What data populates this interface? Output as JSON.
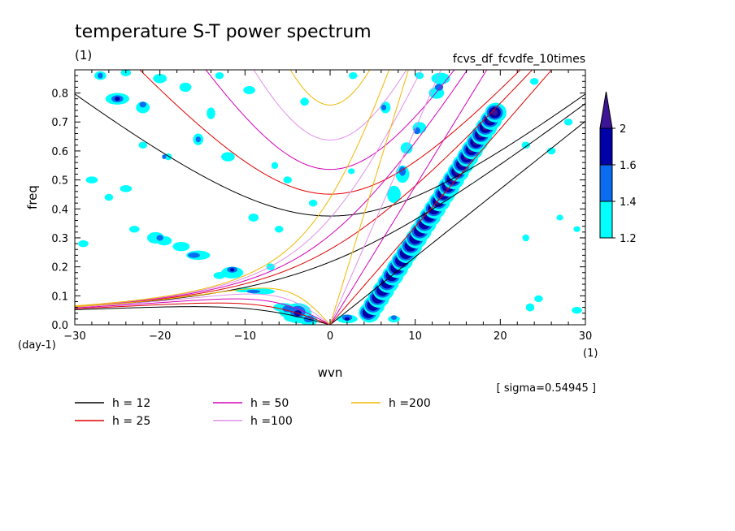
{
  "chart_data": {
    "type": "contour",
    "title": "temperature S-T power spectrum",
    "title_unit": "(1)",
    "subtitle": "fcvs_df_fcvdfe_10times",
    "xlabel": "wvn",
    "x_unit": "(1)",
    "ylabel": "freq",
    "y_unit": "(day-1)",
    "xlim": [
      -30,
      30
    ],
    "ylim": [
      0,
      0.88
    ],
    "x_ticks": [
      -30,
      -20,
      -10,
      0,
      10,
      20,
      30
    ],
    "x_tick_labels": [
      "−30",
      "−20",
      "−10",
      "0",
      "10",
      "20",
      "30"
    ],
    "y_ticks": [
      0,
      0.1,
      0.2,
      0.3,
      0.4,
      0.5,
      0.6,
      0.7,
      0.8
    ],
    "y_tick_labels": [
      "0.0",
      "0.1",
      "0.2",
      "0.3",
      "0.4",
      "0.5",
      "0.6",
      "0.7",
      "0.8"
    ],
    "sigma_label": "[ sigma=0.54945 ]",
    "colorbar": {
      "levels": [
        1.2,
        1.4,
        1.6,
        2
      ],
      "labels": [
        "1.2",
        "1.4",
        "1.6",
        "2"
      ],
      "colors": [
        "#00ffff",
        "#0a6cf0",
        "#0000a8",
        "#3c1496"
      ]
    },
    "dispersion_curves": [
      {
        "label": "h = 12",
        "h": 12,
        "color": "#000000"
      },
      {
        "label": "h = 25",
        "h": 25,
        "color": "#e00000"
      },
      {
        "label": "h = 50",
        "h": 50,
        "color": "#d400b8"
      },
      {
        "label": "h =100",
        "h": 100,
        "color": "#e090e8"
      },
      {
        "label": "h =200",
        "h": 200,
        "color": "#f0b800"
      }
    ]
  }
}
